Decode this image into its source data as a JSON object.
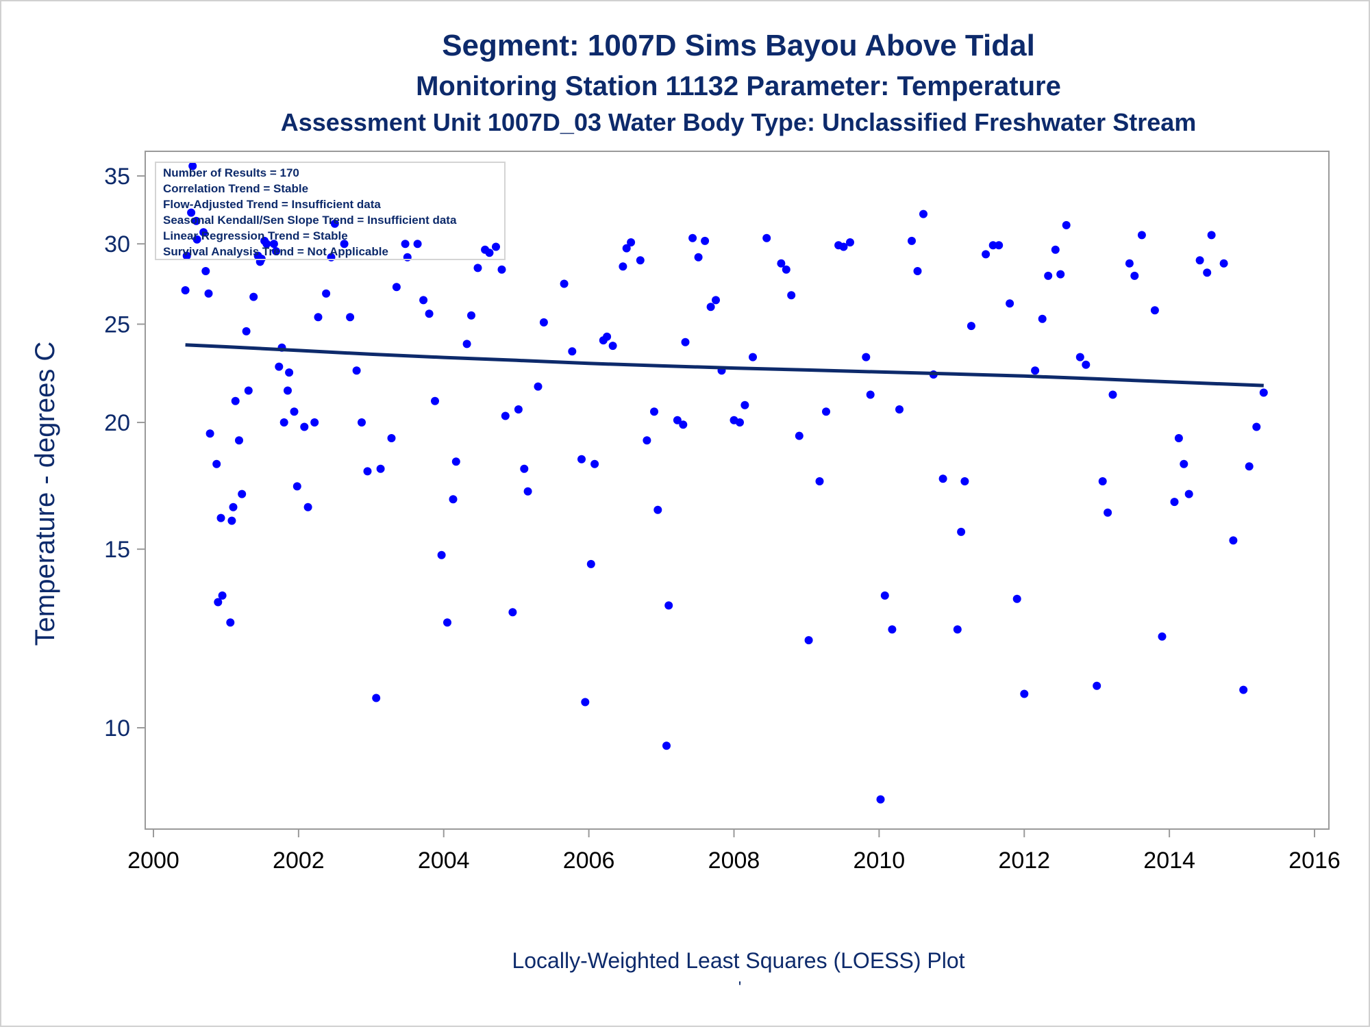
{
  "titles": {
    "line1": "Segment: 1007D  Sims Bayou Above Tidal",
    "line2": "Monitoring Station 11132 Parameter: Temperature",
    "line3": "Assessment Unit 1007D_03   Water Body Type: Unclassified Freshwater Stream"
  },
  "stats_box": [
    "Number of Results = 170",
    "Correlation Trend = Stable",
    "Flow-Adjusted Trend = Insufficient data",
    "Seasonal Kendall/Sen Slope Trend = Insufficient data",
    "Linear Regression Trend = Stable",
    "Survival Analysis Trend = Not Applicable"
  ],
  "footer": {
    "caption": "Locally-Weighted Least Squares (LOESS) Plot",
    "mark": "'"
  },
  "colors": {
    "text": "#0d2a6b",
    "points": "#0000ff",
    "trend_line": "#0d2a6b",
    "axis": "#9a9a9a"
  },
  "chart_data": {
    "type": "scatter",
    "xlabel": "",
    "ylabel": "Temperature - degrees C",
    "xlim": [
      2000,
      2016
    ],
    "x_ticks": [
      2000,
      2002,
      2004,
      2006,
      2008,
      2010,
      2012,
      2014,
      2016
    ],
    "ylim": [
      8.4,
      37.0
    ],
    "y_scale": "log",
    "y_ticks": [
      10,
      15,
      20,
      25,
      30,
      35
    ],
    "grid": false,
    "series": [
      {
        "type": "scatter",
        "points": [
          [
            2000.44,
            27.0
          ],
          [
            2000.46,
            29.2
          ],
          [
            2000.52,
            32.2
          ],
          [
            2000.54,
            35.8
          ],
          [
            2000.59,
            31.6
          ],
          [
            2000.6,
            30.3
          ],
          [
            2000.69,
            30.8
          ],
          [
            2000.72,
            28.2
          ],
          [
            2000.76,
            26.8
          ],
          [
            2000.78,
            19.5
          ],
          [
            2000.87,
            18.2
          ],
          [
            2000.89,
            13.3
          ],
          [
            2000.93,
            16.1
          ],
          [
            2000.95,
            13.5
          ],
          [
            2001.06,
            12.7
          ],
          [
            2001.08,
            16.0
          ],
          [
            2001.1,
            16.5
          ],
          [
            2001.13,
            21.0
          ],
          [
            2001.18,
            19.2
          ],
          [
            2001.22,
            17.0
          ],
          [
            2001.28,
            24.6
          ],
          [
            2001.31,
            21.5
          ],
          [
            2001.38,
            26.6
          ],
          [
            2001.44,
            29.2
          ],
          [
            2001.47,
            28.8
          ],
          [
            2001.49,
            29.0
          ],
          [
            2001.53,
            30.2
          ],
          [
            2001.56,
            30.0
          ],
          [
            2001.66,
            30.0
          ],
          [
            2001.69,
            29.5
          ],
          [
            2001.73,
            22.7
          ],
          [
            2001.77,
            23.7
          ],
          [
            2001.8,
            20.0
          ],
          [
            2001.85,
            21.5
          ],
          [
            2001.87,
            22.4
          ],
          [
            2001.94,
            20.5
          ],
          [
            2001.98,
            17.3
          ],
          [
            2002.08,
            19.8
          ],
          [
            2002.13,
            16.5
          ],
          [
            2002.22,
            20.0
          ],
          [
            2002.27,
            25.4
          ],
          [
            2002.38,
            26.8
          ],
          [
            2002.45,
            29.1
          ],
          [
            2002.5,
            31.4
          ],
          [
            2002.63,
            30.0
          ],
          [
            2002.71,
            25.4
          ],
          [
            2002.8,
            22.5
          ],
          [
            2002.87,
            20.0
          ],
          [
            2002.95,
            17.9
          ],
          [
            2003.07,
            10.7
          ],
          [
            2003.13,
            18.0
          ],
          [
            2003.28,
            19.3
          ],
          [
            2003.35,
            27.2
          ],
          [
            2003.47,
            30.0
          ],
          [
            2003.5,
            29.1
          ],
          [
            2003.64,
            30.0
          ],
          [
            2003.72,
            26.4
          ],
          [
            2003.8,
            25.6
          ],
          [
            2003.88,
            21.0
          ],
          [
            2003.97,
            14.8
          ],
          [
            2004.05,
            12.7
          ],
          [
            2004.13,
            16.8
          ],
          [
            2004.17,
            18.3
          ],
          [
            2004.32,
            23.9
          ],
          [
            2004.38,
            25.5
          ],
          [
            2004.47,
            28.4
          ],
          [
            2004.57,
            29.6
          ],
          [
            2004.63,
            29.4
          ],
          [
            2004.72,
            29.8
          ],
          [
            2004.8,
            28.3
          ],
          [
            2004.85,
            20.3
          ],
          [
            2004.95,
            13.0
          ],
          [
            2005.03,
            20.6
          ],
          [
            2005.11,
            18.0
          ],
          [
            2005.16,
            17.1
          ],
          [
            2005.3,
            21.7
          ],
          [
            2005.38,
            25.1
          ],
          [
            2005.66,
            27.4
          ],
          [
            2005.77,
            23.5
          ],
          [
            2005.9,
            18.4
          ],
          [
            2005.95,
            10.6
          ],
          [
            2006.03,
            14.5
          ],
          [
            2006.08,
            18.2
          ],
          [
            2006.2,
            24.1
          ],
          [
            2006.25,
            24.3
          ],
          [
            2006.33,
            23.8
          ],
          [
            2006.47,
            28.5
          ],
          [
            2006.52,
            29.7
          ],
          [
            2006.58,
            30.1
          ],
          [
            2006.71,
            28.9
          ],
          [
            2006.8,
            19.2
          ],
          [
            2006.9,
            20.5
          ],
          [
            2006.95,
            16.4
          ],
          [
            2007.07,
            9.6
          ],
          [
            2007.1,
            13.2
          ],
          [
            2007.22,
            20.1
          ],
          [
            2007.3,
            19.9
          ],
          [
            2007.33,
            24.0
          ],
          [
            2007.43,
            30.4
          ],
          [
            2007.51,
            29.1
          ],
          [
            2007.6,
            30.2
          ],
          [
            2007.68,
            26.0
          ],
          [
            2007.75,
            26.4
          ],
          [
            2007.83,
            22.5
          ],
          [
            2008.0,
            20.1
          ],
          [
            2008.08,
            20.0
          ],
          [
            2008.15,
            20.8
          ],
          [
            2008.26,
            23.2
          ],
          [
            2008.45,
            30.4
          ],
          [
            2008.65,
            28.7
          ],
          [
            2008.72,
            28.3
          ],
          [
            2008.79,
            26.7
          ],
          [
            2008.9,
            19.4
          ],
          [
            2009.03,
            12.2
          ],
          [
            2009.18,
            17.5
          ],
          [
            2009.27,
            20.5
          ],
          [
            2009.44,
            29.9
          ],
          [
            2009.51,
            29.8
          ],
          [
            2009.6,
            30.1
          ],
          [
            2009.82,
            23.2
          ],
          [
            2009.88,
            21.3
          ],
          [
            2010.02,
            8.5
          ],
          [
            2010.08,
            13.5
          ],
          [
            2010.18,
            12.5
          ],
          [
            2010.28,
            20.6
          ],
          [
            2010.45,
            30.2
          ],
          [
            2010.53,
            28.2
          ],
          [
            2010.61,
            32.1
          ],
          [
            2010.75,
            22.3
          ],
          [
            2010.88,
            17.6
          ],
          [
            2011.08,
            12.5
          ],
          [
            2011.13,
            15.6
          ],
          [
            2011.18,
            17.5
          ],
          [
            2011.27,
            24.9
          ],
          [
            2011.47,
            29.3
          ],
          [
            2011.57,
            29.9
          ],
          [
            2011.65,
            29.9
          ],
          [
            2011.8,
            26.2
          ],
          [
            2011.9,
            13.4
          ],
          [
            2012.0,
            10.8
          ],
          [
            2012.15,
            22.5
          ],
          [
            2012.25,
            25.3
          ],
          [
            2012.33,
            27.9
          ],
          [
            2012.43,
            29.6
          ],
          [
            2012.5,
            28.0
          ],
          [
            2012.58,
            31.3
          ],
          [
            2012.77,
            23.2
          ],
          [
            2012.85,
            22.8
          ],
          [
            2013.0,
            11.0
          ],
          [
            2013.08,
            17.5
          ],
          [
            2013.15,
            16.3
          ],
          [
            2013.22,
            21.3
          ],
          [
            2013.45,
            28.7
          ],
          [
            2013.52,
            27.9
          ],
          [
            2013.62,
            30.6
          ],
          [
            2013.8,
            25.8
          ],
          [
            2013.9,
            12.3
          ],
          [
            2014.07,
            16.7
          ],
          [
            2014.13,
            19.3
          ],
          [
            2014.2,
            18.2
          ],
          [
            2014.27,
            17.0
          ],
          [
            2014.42,
            28.9
          ],
          [
            2014.52,
            28.1
          ],
          [
            2014.58,
            30.6
          ],
          [
            2014.75,
            28.7
          ],
          [
            2014.88,
            15.3
          ],
          [
            2015.02,
            10.9
          ],
          [
            2015.1,
            18.1
          ],
          [
            2015.2,
            19.8
          ],
          [
            2015.3,
            21.4
          ]
        ]
      },
      {
        "type": "line",
        "points": [
          [
            2000.44,
            23.85
          ],
          [
            2001.0,
            23.75
          ],
          [
            2002.0,
            23.55
          ],
          [
            2003.0,
            23.35
          ],
          [
            2004.0,
            23.18
          ],
          [
            2005.0,
            23.03
          ],
          [
            2006.0,
            22.87
          ],
          [
            2007.0,
            22.74
          ],
          [
            2008.0,
            22.63
          ],
          [
            2009.0,
            22.53
          ],
          [
            2010.0,
            22.43
          ],
          [
            2011.0,
            22.33
          ],
          [
            2012.0,
            22.22
          ],
          [
            2013.0,
            22.08
          ],
          [
            2014.0,
            21.93
          ],
          [
            2015.3,
            21.75
          ]
        ]
      }
    ]
  }
}
